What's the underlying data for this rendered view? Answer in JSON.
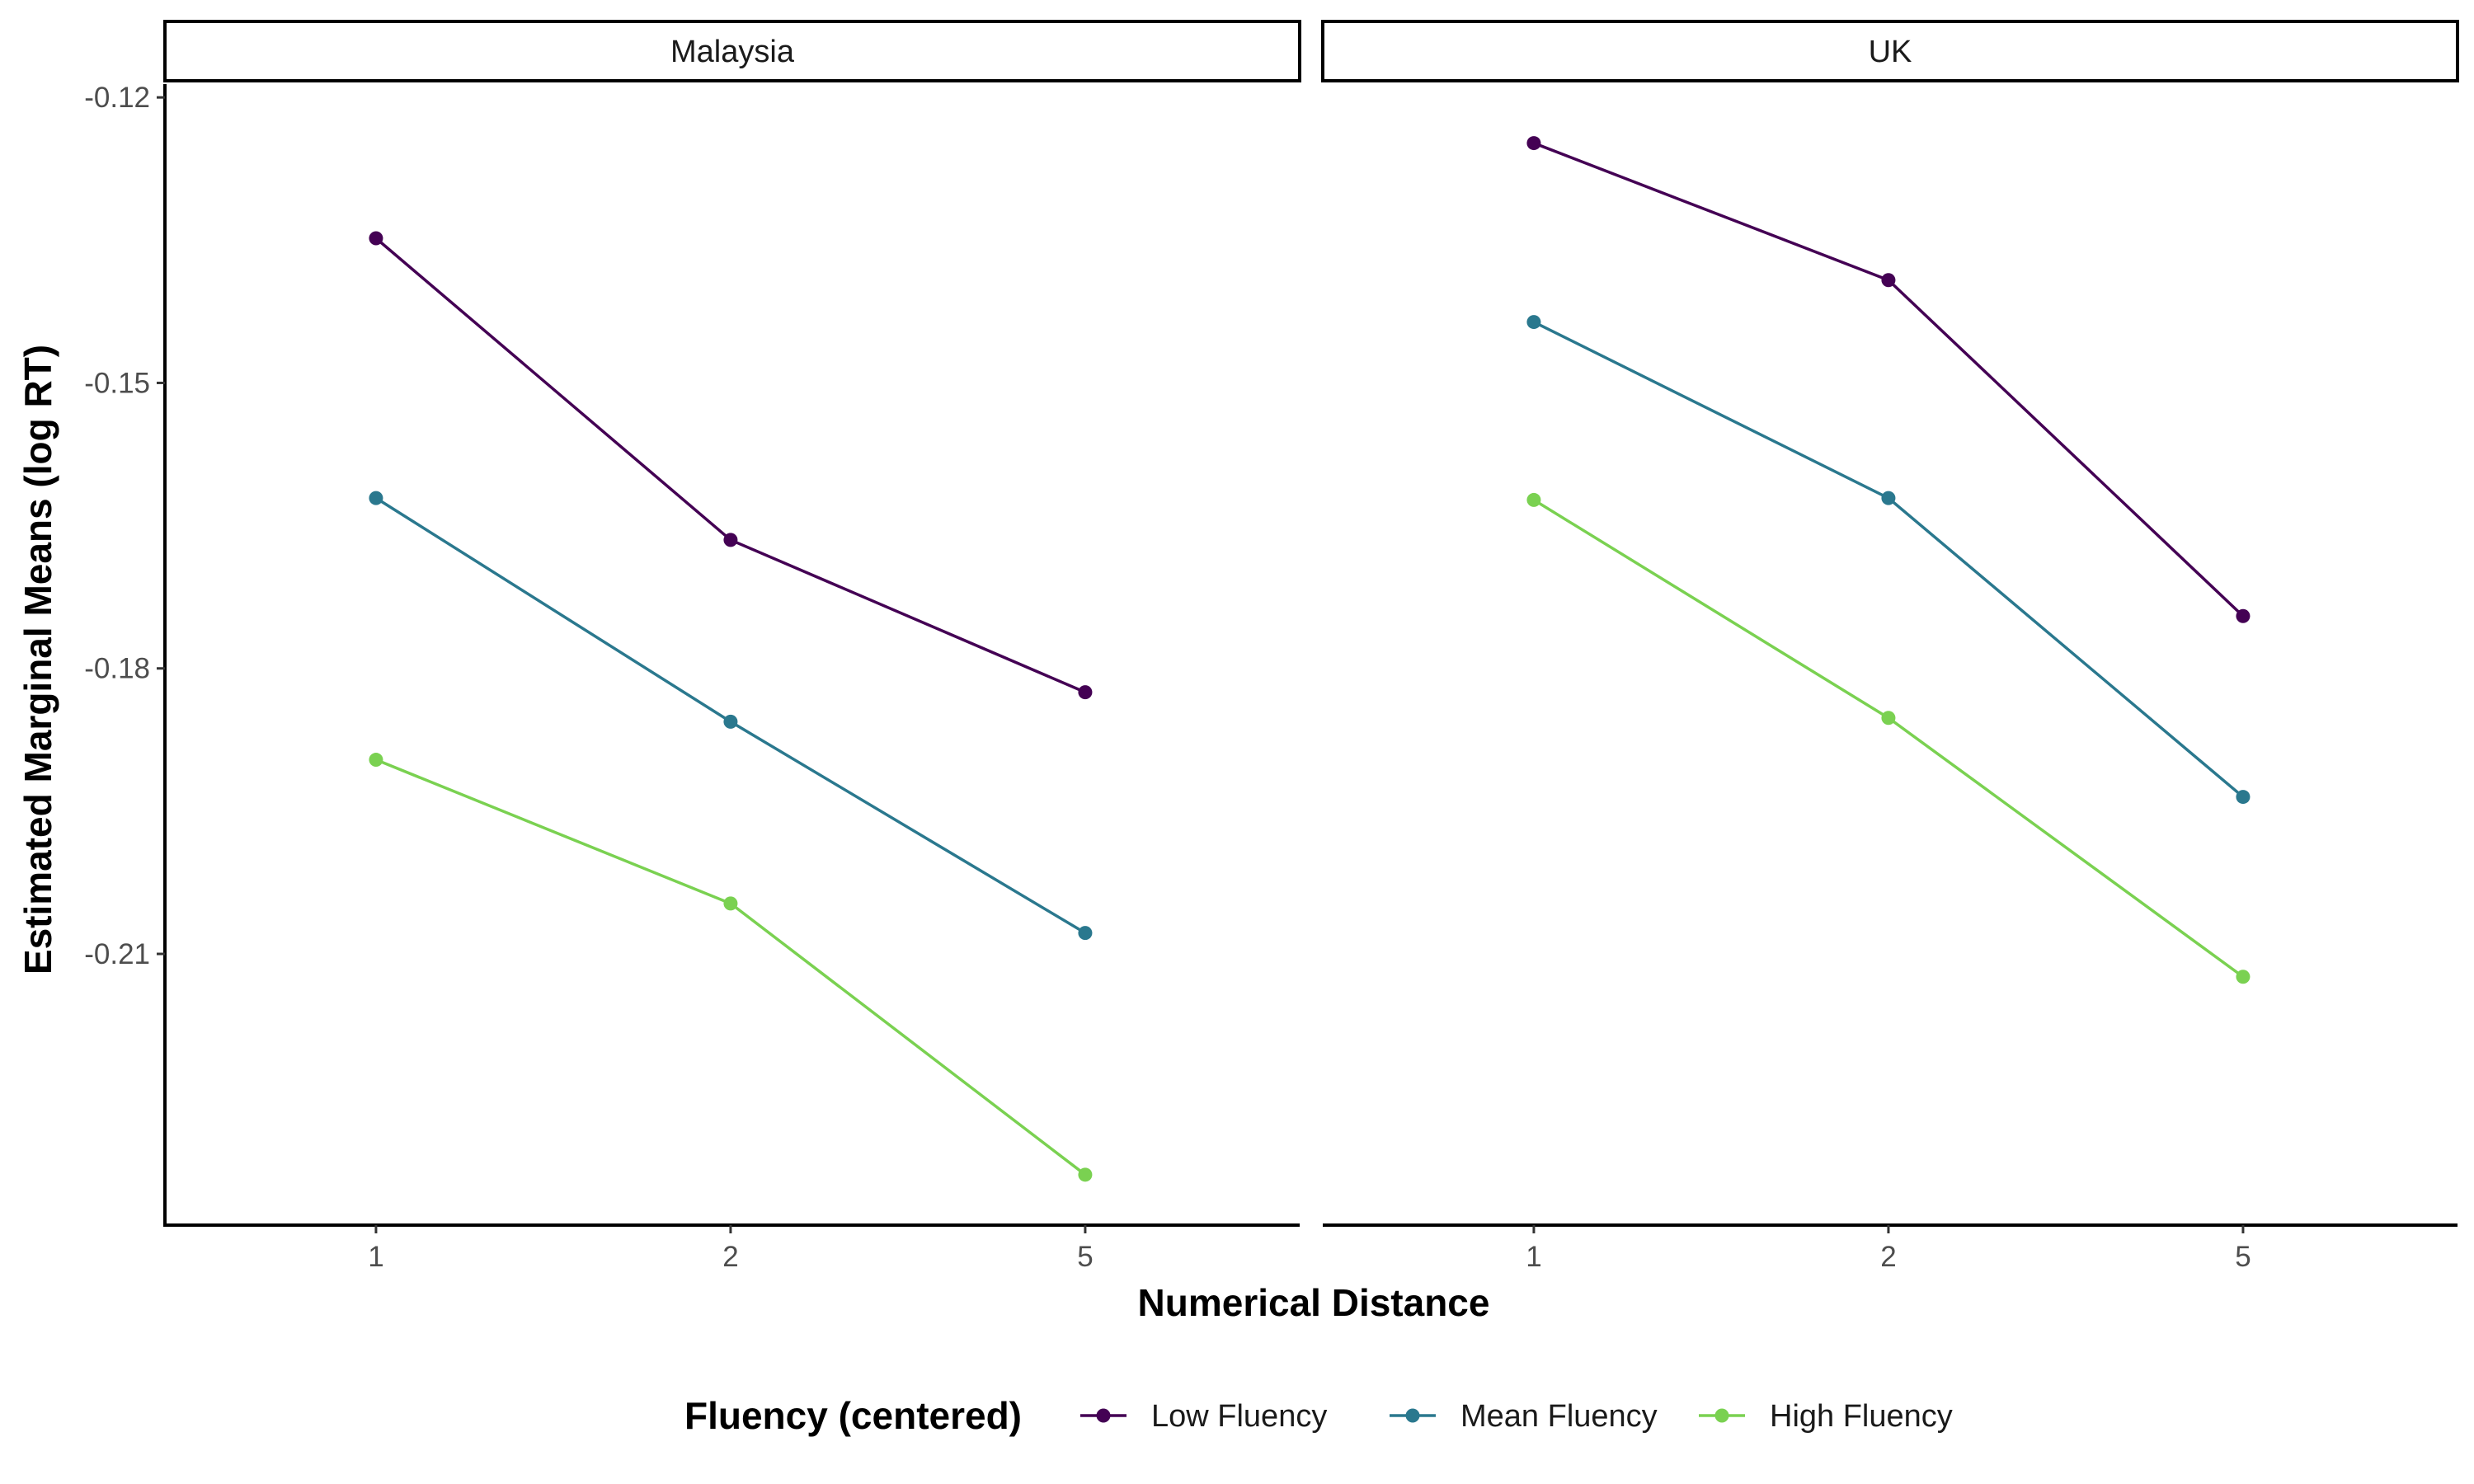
{
  "chart_data": {
    "type": "line",
    "facets": [
      "Malaysia",
      "UK"
    ],
    "categories": [
      "1",
      "2",
      "5"
    ],
    "xlabel": "Numerical Distance",
    "ylabel": "Estimated Marginal Means (log RT)",
    "y_ticks": [
      -0.12,
      -0.15,
      -0.18,
      -0.21
    ],
    "ylim": [
      -0.2385,
      -0.1186
    ],
    "grid": false,
    "legend": {
      "title": "Fluency (centered)",
      "placement": "bottom"
    },
    "series": [
      {
        "name": "Low Fluency",
        "color": "#440154",
        "values": {
          "Malaysia": [
            -0.1348,
            -0.1665,
            -0.1825
          ],
          "UK": [
            -0.1248,
            -0.1392,
            -0.1745
          ]
        }
      },
      {
        "name": "Mean Fluency",
        "color": "#2A788E",
        "values": {
          "Malaysia": [
            -0.1621,
            -0.1856,
            -0.2078
          ],
          "UK": [
            -0.1436,
            -0.1621,
            -0.1935
          ]
        }
      },
      {
        "name": "High Fluency",
        "color": "#7AD151",
        "values": {
          "Malaysia": [
            -0.1896,
            -0.2047,
            -0.2332
          ],
          "UK": [
            -0.1623,
            -0.1852,
            -0.2124
          ]
        }
      }
    ]
  }
}
